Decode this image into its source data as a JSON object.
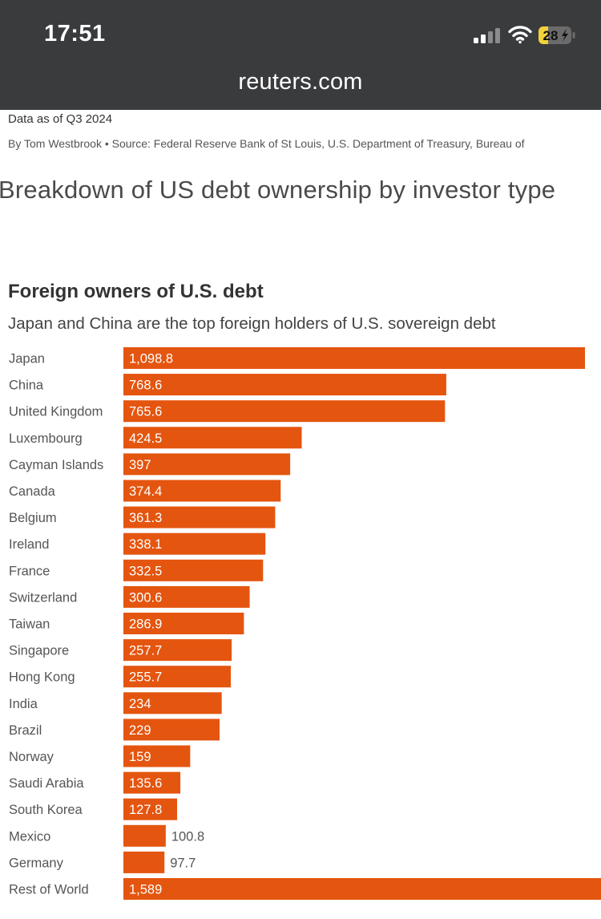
{
  "status_bar": {
    "time": "17:51",
    "battery": "28",
    "icons": [
      "cellular-signal-icon",
      "wifi-icon",
      "battery-charging-icon"
    ]
  },
  "browser": {
    "url": "reuters.com"
  },
  "article": {
    "dateline": "Data as of Q3 2024",
    "byline": "By Tom Westbrook • Source: Federal Reserve Bank of St Louis, U.S. Department of Treasury, Bureau of",
    "section_title": "Breakdown of US debt ownership by investor type"
  },
  "colors": {
    "bar": "#e4550f",
    "label_inside": "#ffffff",
    "label_outside": "#555555",
    "chrome": "#3a3b3d"
  },
  "chart_data": {
    "type": "bar",
    "orientation": "horizontal",
    "title": "Foreign owners of U.S. debt",
    "subtitle": "Japan and China are the top foreign holders of U.S. sovereign debt",
    "categories": [
      "Japan",
      "China",
      "United Kingdom",
      "Luxembourg",
      "Cayman Islands",
      "Canada",
      "Belgium",
      "Ireland",
      "France",
      "Switzerland",
      "Taiwan",
      "Singapore",
      "Hong Kong",
      "India",
      "Brazil",
      "Norway",
      "Saudi Arabia",
      "South Korea",
      "Mexico",
      "Germany",
      "Rest of World"
    ],
    "values": [
      1098.8,
      768.6,
      765.6,
      424.5,
      397,
      374.4,
      361.3,
      338.1,
      332.5,
      300.6,
      286.9,
      257.7,
      255.7,
      234,
      229,
      159,
      135.6,
      127.8,
      100.8,
      97.7,
      1589
    ],
    "value_labels": [
      "1,098.8",
      "768.6",
      "765.6",
      "424.5",
      "397",
      "374.4",
      "361.3",
      "338.1",
      "332.5",
      "300.6",
      "286.9",
      "257.7",
      "255.7",
      "234",
      "229",
      "159",
      "135.6",
      "127.8",
      "100.8",
      "97.7",
      "1,589"
    ],
    "xlabel": "",
    "ylabel": "",
    "xlim": [
      0,
      1098.8
    ],
    "grid": false,
    "legend": "none"
  }
}
